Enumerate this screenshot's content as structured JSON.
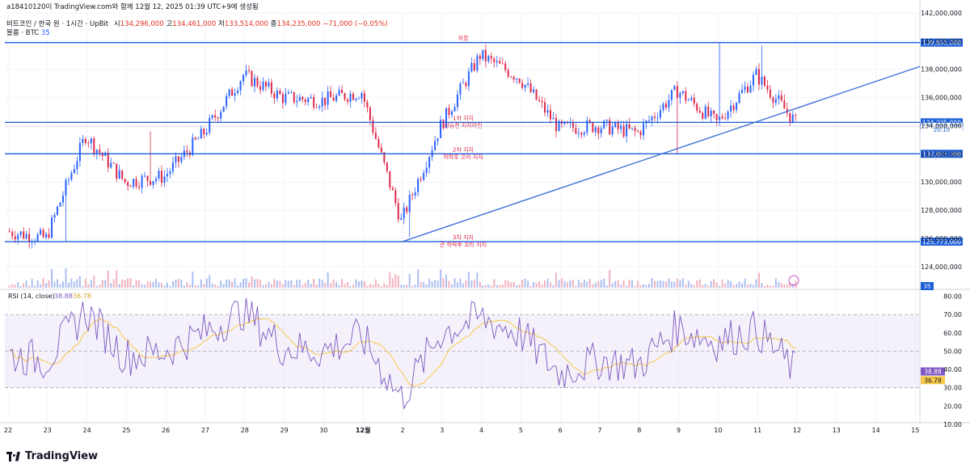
{
  "header": {
    "author_line": "a18410120이 TradingView.com와 함께 12월 12, 2025 01:39 UTC+9에 생성됨",
    "symbol": "비트코인 / 한국 원 · 1시간 · UpBit",
    "open_label": "시",
    "open": "134,296,000",
    "high_label": "고",
    "high": "134,461,000",
    "low_label": "저",
    "low": "133,514,000",
    "close_label": "종",
    "close": "134,235,000",
    "change": "−71,000 (−0.05%)",
    "volume_label": "볼륨 · BTC",
    "volume_value": "35"
  },
  "branding": {
    "name": "TradingView"
  },
  "chart_data": [
    {
      "type": "candlestick",
      "symbol": "비트코인 / 한국 원",
      "interval": "1시간",
      "exchange": "UpBit",
      "currency": "KRW",
      "y_axis_ticks": [
        124000000,
        126000000,
        128000000,
        130000000,
        132000000,
        134000000,
        136000000,
        138000000,
        140000000,
        142000000
      ],
      "y_axis_tick_labels": [
        "124,000,000",
        "126,000,000",
        "128,000,000",
        "130,000,000",
        "132,000,000",
        "134,000,000",
        "136,000,000",
        "138,000,000",
        "140,000,000",
        "142,000,000"
      ],
      "ylim": [
        122500000,
        142000000
      ],
      "x_axis_tick_labels": [
        "22",
        "23",
        "24",
        "25",
        "26",
        "27",
        "28",
        "29",
        "30",
        "12월",
        "2",
        "3",
        "4",
        "5",
        "6",
        "7",
        "8",
        "9",
        "10",
        "11",
        "12",
        "13",
        "14",
        "15"
      ],
      "approx_trend_closes": [
        {
          "day": "22",
          "close": 126500000
        },
        {
          "day": "23",
          "close": 126000000
        },
        {
          "day": "24",
          "close": 133300000
        },
        {
          "day": "25",
          "close": 130000000
        },
        {
          "day": "26",
          "close": 130400000
        },
        {
          "day": "27",
          "close": 133500000
        },
        {
          "day": "28",
          "close": 137600000
        },
        {
          "day": "29",
          "close": 136000000
        },
        {
          "day": "30",
          "close": 135800000
        },
        {
          "day": "12월",
          "close": 136400000
        },
        {
          "day": "2",
          "close": 127200000
        },
        {
          "day": "3",
          "close": 134000000
        },
        {
          "day": "4",
          "close": 139000000
        },
        {
          "day": "5",
          "close": 137400000
        },
        {
          "day": "6",
          "close": 133800000
        },
        {
          "day": "7",
          "close": 134000000
        },
        {
          "day": "8",
          "close": 133500000
        },
        {
          "day": "9",
          "close": 136500000
        },
        {
          "day": "10",
          "close": 134200000
        },
        {
          "day": "11",
          "close": 137600000
        },
        {
          "day": "12",
          "close": 134235000
        }
      ],
      "horizontal_levels": [
        {
          "value": 139895000,
          "label": "139,895,000",
          "note": "저항"
        },
        {
          "value": 134235000,
          "label": "134,235,000",
          "note": "1차 지지",
          "note2": "상승전 지지라인"
        },
        {
          "value": 133944000,
          "label": "133,944,000"
        },
        {
          "value": 132003000,
          "label": "132,003,000",
          "note": "2차 지지",
          "note2": "하락후 꼬리 지지"
        },
        {
          "value": 125773000,
          "label": "125,773,000",
          "note": "3차 지지",
          "note2": "큰 하락후 꼬리 지지"
        }
      ],
      "trendline": {
        "from": {
          "day": "2",
          "value": 125773000
        },
        "to": {
          "day": "15",
          "value": 138200000
        }
      },
      "countdown": "20:10",
      "volume_last": "35"
    },
    {
      "type": "line",
      "title": "RSI (14, close)",
      "values_current": {
        "rsi": "38.88",
        "ma": "36.78"
      },
      "y_axis_tick_labels": [
        "10.00",
        "20.00",
        "30.00",
        "40.00",
        "50.00",
        "60.00",
        "70.00",
        "80.00"
      ],
      "ylim": [
        10,
        82
      ],
      "bands": [
        30,
        50,
        70
      ],
      "series": [
        {
          "name": "RSI",
          "color": "#7e57c2"
        },
        {
          "name": "MA",
          "color": "#f7c948"
        }
      ],
      "approx_rsi_by_day": [
        {
          "day": "22",
          "value": 48
        },
        {
          "day": "23",
          "value": 45
        },
        {
          "day": "24",
          "value": 72
        },
        {
          "day": "25",
          "value": 47
        },
        {
          "day": "26",
          "value": 50
        },
        {
          "day": "27",
          "value": 60
        },
        {
          "day": "28",
          "value": 72
        },
        {
          "day": "29",
          "value": 52
        },
        {
          "day": "30",
          "value": 50
        },
        {
          "day": "12월",
          "value": 58
        },
        {
          "day": "2",
          "value": 24
        },
        {
          "day": "3",
          "value": 60
        },
        {
          "day": "4",
          "value": 68
        },
        {
          "day": "5",
          "value": 60
        },
        {
          "day": "6",
          "value": 38
        },
        {
          "day": "7",
          "value": 45
        },
        {
          "day": "8",
          "value": 42
        },
        {
          "day": "9",
          "value": 63
        },
        {
          "day": "10",
          "value": 55
        },
        {
          "day": "11",
          "value": 62
        },
        {
          "day": "12",
          "value": 38.88
        }
      ]
    }
  ],
  "colors": {
    "up": "#2962ff",
    "down": "#e0294a",
    "level": "#1e5fd8",
    "trend": "#3d6fd6",
    "annot": "#e0294a",
    "rsi": "#7e57c2",
    "rsi_ma": "#f7c948",
    "rsi_band": "#ede7f6"
  }
}
